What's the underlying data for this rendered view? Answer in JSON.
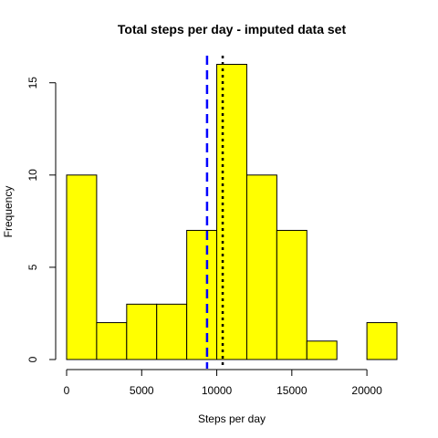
{
  "chart_data": {
    "type": "histogram",
    "title": "Total steps per day - imputed data set",
    "xlabel": "Steps per day",
    "ylabel": "Frequency",
    "bins": [
      {
        "from": 0,
        "to": 2000,
        "count": 10
      },
      {
        "from": 2000,
        "to": 4000,
        "count": 2
      },
      {
        "from": 4000,
        "to": 6000,
        "count": 3
      },
      {
        "from": 6000,
        "to": 8000,
        "count": 3
      },
      {
        "from": 8000,
        "to": 10000,
        "count": 7
      },
      {
        "from": 10000,
        "to": 12000,
        "count": 16
      },
      {
        "from": 12000,
        "to": 14000,
        "count": 10
      },
      {
        "from": 14000,
        "to": 16000,
        "count": 7
      },
      {
        "from": 16000,
        "to": 18000,
        "count": 1
      },
      {
        "from": 18000,
        "to": 20000,
        "count": 0
      },
      {
        "from": 20000,
        "to": 22000,
        "count": 2
      }
    ],
    "x_ticks": [
      0,
      5000,
      10000,
      15000,
      20000
    ],
    "y_ticks": [
      0,
      5,
      10,
      15
    ],
    "xlim": [
      0,
      22000
    ],
    "ylim": [
      0,
      16
    ],
    "bar_fill": "#ffff00",
    "bar_stroke": "#000000",
    "reference_lines": [
      {
        "value": 9354,
        "color": "#0000ff",
        "style": "dashed"
      },
      {
        "value": 10395,
        "color": "#000000",
        "style": "dotted"
      }
    ],
    "grid": false,
    "legend": "none"
  }
}
